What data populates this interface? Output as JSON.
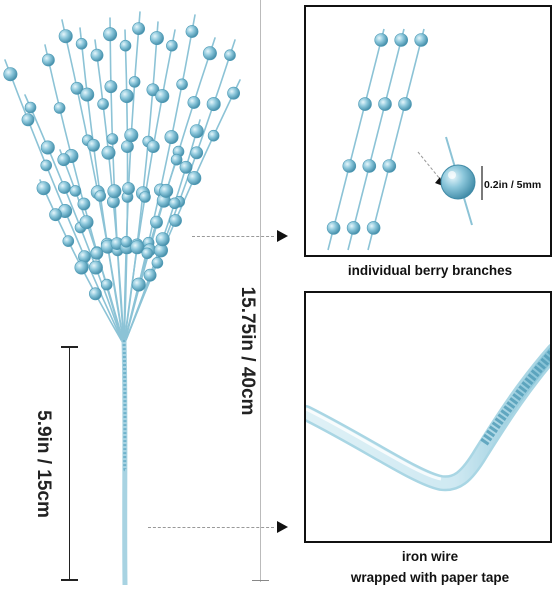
{
  "product_image": {
    "overall_height_label": "15.75in / 40cm",
    "stem_length_label": "5.9in / 15cm"
  },
  "panel_top": {
    "caption": "individual berry branches",
    "berry_size_label": "0.2in / 5mm"
  },
  "panel_bottom": {
    "caption_line1": "iron wire",
    "caption_line2": "wrapped with paper tape"
  },
  "colors": {
    "berry_blue": "#6fb3cc",
    "berry_light": "#bfe3ef",
    "tape_light": "#cfe9f2",
    "frame": "#111111"
  }
}
